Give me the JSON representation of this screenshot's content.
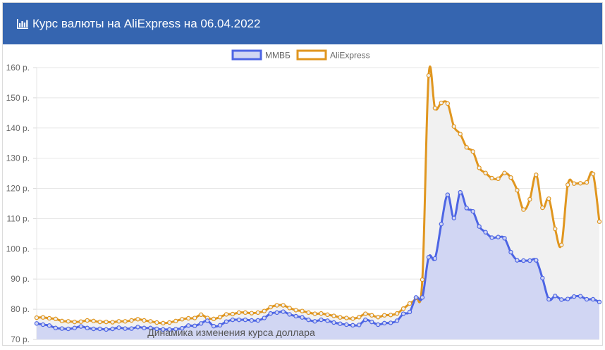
{
  "header": {
    "title": "Курс валюты на AliExpress на 06.04.2022",
    "icon": "bar-chart-icon"
  },
  "colors": {
    "header_bg": "#3565b0",
    "mmvb": "#4d65e4",
    "aliexpress": "#e0961f",
    "mmvb_fill": "#d1d6f3",
    "aliexpress_fill": "#f1f1f1"
  },
  "chart_data": {
    "type": "area",
    "xlabel": "Динамика изменения курса доллара",
    "ylim": [
      70,
      160
    ],
    "yticks": [
      "70 р.",
      "80 р.",
      "90 р.",
      "100 р.",
      "110 р.",
      "120 р.",
      "130 р.",
      "140 р.",
      "150 р.",
      "160 р."
    ],
    "legend_position": "top-center",
    "grid": true,
    "series": [
      {
        "name": "ММВБ",
        "values": [
          75.3,
          74.9,
          74.6,
          73.8,
          73.6,
          73.5,
          73.8,
          74.3,
          73.8,
          73.5,
          73.5,
          73.3,
          73.5,
          73.9,
          73.6,
          73.6,
          74.1,
          73.8,
          73.8,
          73.5,
          73.3,
          73.3,
          73.4,
          73.7,
          74.6,
          74.5,
          75.3,
          76.2,
          74.4,
          74.7,
          75.9,
          76.5,
          76.5,
          76.5,
          76.3,
          76.3,
          77.1,
          78.6,
          78.9,
          79.2,
          78.3,
          77.7,
          77.3,
          76.5,
          76.0,
          76.5,
          76.2,
          75.6,
          75.2,
          74.9,
          74.7,
          74.8,
          76.5,
          75.8,
          74.9,
          75.4,
          75.5,
          76.2,
          78.5,
          79.1,
          83.9,
          83.9,
          97.2,
          96.8,
          108.2,
          117.9,
          110.2,
          118.7,
          113.5,
          112.4,
          107.4,
          105.5,
          103.7,
          103.9,
          103.5,
          98.9,
          96.2,
          96.1,
          96.1,
          96.2,
          90.3,
          83.3,
          84.4,
          83.2,
          83.4,
          84.2,
          84.3,
          83.3,
          83.3,
          82.4
        ]
      },
      {
        "name": "AliExpress",
        "values": [
          77.2,
          77.3,
          77.0,
          76.8,
          76.1,
          76.0,
          75.8,
          75.9,
          76.3,
          76.1,
          75.8,
          75.8,
          75.7,
          76.0,
          76.0,
          76.3,
          76.7,
          76.3,
          76.0,
          75.6,
          75.4,
          75.6,
          76.1,
          76.7,
          77.0,
          77.1,
          78.2,
          77.1,
          76.8,
          77.4,
          78.3,
          78.4,
          78.9,
          78.9,
          78.7,
          78.9,
          79.4,
          80.7,
          81.3,
          81.3,
          80.4,
          79.7,
          79.4,
          78.9,
          78.5,
          78.6,
          78.2,
          77.8,
          77.3,
          77.1,
          76.9,
          77.4,
          78.5,
          78.0,
          77.4,
          78.0,
          78.1,
          78.6,
          80.2,
          81.9,
          83.8,
          89.8,
          157.4,
          146.6,
          148.3,
          148.1,
          140.5,
          138.0,
          133.6,
          132.2,
          126.8,
          125.1,
          123.4,
          123.2,
          125.1,
          123.6,
          119.4,
          113.0,
          116.4,
          124.5,
          113.6,
          116.6,
          106.6,
          101.3,
          121.2,
          121.6,
          121.7,
          122.0,
          124.8,
          109.0
        ]
      }
    ]
  }
}
